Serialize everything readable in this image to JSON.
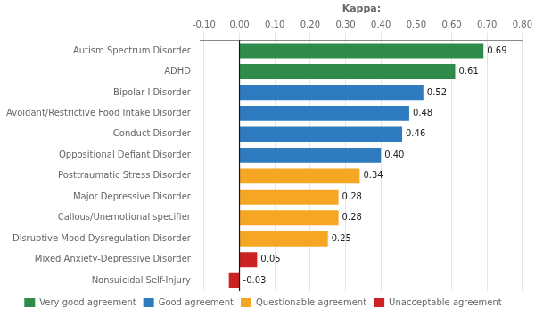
{
  "chart_data": {
    "type": "bar",
    "orientation": "horizontal",
    "stacked": true,
    "xlabel": "Kappa:",
    "categories": [
      "Autism Spectrum Disorder",
      "ADHD",
      "Bipolar I Disorder",
      "Avoidant/Restrictive Food Intake Disorder",
      "Conduct Disorder",
      "Oppositional Defiant Disorder",
      "Posttraumatic Stress Disorder",
      "Major Depressive Disorder",
      "Callous/Unemotional specifier",
      "Disruptive Mood Dysregulation Disorder",
      "Mixed Anxiety-Depressive Disorder",
      "Nonsuicidal Self-Injury"
    ],
    "series": [
      {
        "name": "Very good agreement",
        "color": "#2e8b4a",
        "values": [
          0.69,
          0.61,
          null,
          null,
          null,
          null,
          null,
          null,
          null,
          null,
          null,
          null
        ],
        "value_labels": [
          "0.69",
          "0.61",
          null,
          null,
          null,
          null,
          null,
          null,
          null,
          null,
          null,
          null
        ]
      },
      {
        "name": "Good agreement",
        "color": "#2e7bbf",
        "values": [
          null,
          null,
          0.52,
          0.48,
          0.46,
          0.4,
          null,
          null,
          null,
          null,
          null,
          null
        ],
        "value_labels": [
          null,
          null,
          "0.52",
          "0.48",
          "0.46",
          "0.40",
          null,
          null,
          null,
          null,
          null,
          null
        ]
      },
      {
        "name": "Questionable agreement",
        "color": "#f5a623",
        "values": [
          null,
          null,
          null,
          null,
          null,
          null,
          0.34,
          0.28,
          0.28,
          0.25,
          null,
          null
        ],
        "value_labels": [
          null,
          null,
          null,
          null,
          null,
          null,
          "0.34",
          "0.28",
          "0.28",
          "0.25",
          null,
          null
        ]
      },
      {
        "name": "Unacceptable agreement",
        "color": "#cc2222",
        "values": [
          null,
          null,
          null,
          null,
          null,
          null,
          null,
          null,
          null,
          null,
          0.05,
          -0.03
        ],
        "value_labels": [
          null,
          null,
          null,
          null,
          null,
          null,
          null,
          null,
          null,
          null,
          "0.05",
          "-0.03"
        ]
      }
    ],
    "data_labels": true,
    "xlim": [
      -0.11,
      0.8
    ],
    "xticks": [
      {
        "value": -0.1,
        "label": "-0.10"
      },
      {
        "value": 0.0,
        "label": "0.00"
      },
      {
        "value": 0.1,
        "label": "0.10"
      },
      {
        "value": 0.2,
        "label": "0.20"
      },
      {
        "value": 0.3,
        "label": "0.30"
      },
      {
        "value": 0.4,
        "label": "0.40"
      },
      {
        "value": 0.5,
        "label": "0.50"
      },
      {
        "value": 0.6,
        "label": "0.60"
      },
      {
        "value": 0.7,
        "label": "0.70"
      },
      {
        "value": 0.8,
        "label": "0.80"
      }
    ],
    "grid": true,
    "legend": "bottom"
  }
}
